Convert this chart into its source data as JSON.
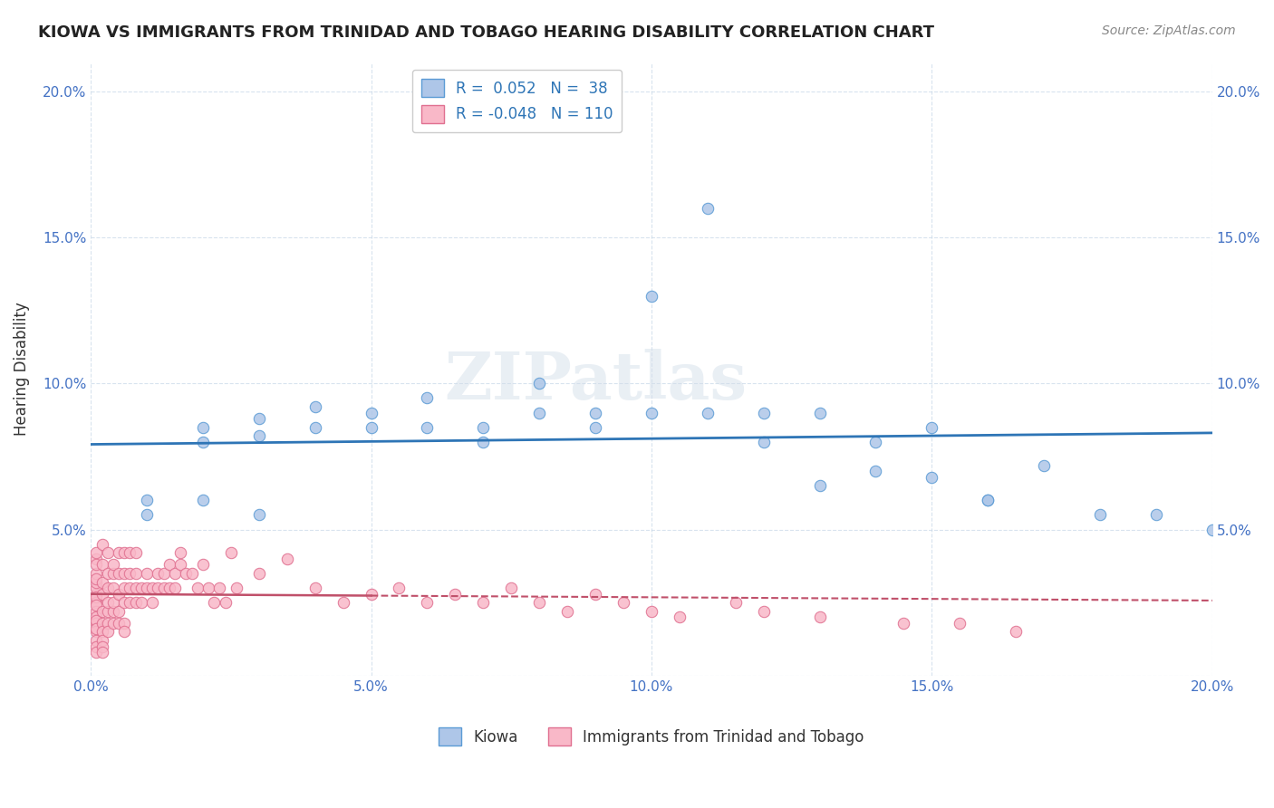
{
  "title": "KIOWA VS IMMIGRANTS FROM TRINIDAD AND TOBAGO HEARING DISABILITY CORRELATION CHART",
  "source": "Source: ZipAtlas.com",
  "xlabel_bottom": "",
  "ylabel": "Hearing Disability",
  "xlim": [
    0.0,
    0.2
  ],
  "ylim": [
    0.0,
    0.21
  ],
  "yticks": [
    0.0,
    0.05,
    0.1,
    0.15,
    0.2
  ],
  "ytick_labels": [
    "",
    "5.0%",
    "10.0%",
    "15.0%",
    "20.0%"
  ],
  "xticks": [
    0.0,
    0.05,
    0.1,
    0.15,
    0.2
  ],
  "xtick_labels": [
    "0.0%",
    "5.0%",
    "10.0%",
    "15.0%",
    "20.0%"
  ],
  "legend_entries": [
    {
      "label": "R =  0.052  N =  38",
      "color": "#aec6e8",
      "border": "#5b9bd5"
    },
    {
      "label": "R = -0.048  N = 110",
      "color": "#f4b8c8",
      "border": "#d9748a"
    }
  ],
  "legend_labels_bottom": [
    "Kiowa",
    "Immigrants from Trinidad and Tobago"
  ],
  "blue_R": 0.052,
  "blue_N": 38,
  "pink_R": -0.048,
  "pink_N": 110,
  "watermark": "ZIPatlas",
  "blue_scatter_x": [
    0.01,
    0.01,
    0.02,
    0.02,
    0.02,
    0.03,
    0.03,
    0.03,
    0.04,
    0.04,
    0.05,
    0.05,
    0.06,
    0.06,
    0.07,
    0.07,
    0.08,
    0.08,
    0.09,
    0.09,
    0.1,
    0.1,
    0.11,
    0.11,
    0.12,
    0.12,
    0.13,
    0.13,
    0.14,
    0.14,
    0.15,
    0.15,
    0.16,
    0.16,
    0.17,
    0.18,
    0.19,
    0.2
  ],
  "blue_scatter_y": [
    0.055,
    0.06,
    0.085,
    0.08,
    0.06,
    0.088,
    0.082,
    0.055,
    0.092,
    0.085,
    0.09,
    0.085,
    0.095,
    0.085,
    0.085,
    0.08,
    0.1,
    0.09,
    0.085,
    0.09,
    0.09,
    0.13,
    0.16,
    0.09,
    0.09,
    0.08,
    0.09,
    0.065,
    0.08,
    0.07,
    0.085,
    0.068,
    0.06,
    0.06,
    0.072,
    0.055,
    0.055,
    0.05
  ],
  "pink_scatter_x": [
    0.001,
    0.001,
    0.001,
    0.001,
    0.001,
    0.001,
    0.001,
    0.001,
    0.001,
    0.001,
    0.001,
    0.001,
    0.001,
    0.001,
    0.001,
    0.001,
    0.001,
    0.001,
    0.001,
    0.001,
    0.002,
    0.002,
    0.002,
    0.002,
    0.002,
    0.002,
    0.002,
    0.002,
    0.002,
    0.002,
    0.003,
    0.003,
    0.003,
    0.003,
    0.003,
    0.003,
    0.003,
    0.004,
    0.004,
    0.004,
    0.004,
    0.004,
    0.004,
    0.005,
    0.005,
    0.005,
    0.005,
    0.005,
    0.006,
    0.006,
    0.006,
    0.006,
    0.006,
    0.006,
    0.007,
    0.007,
    0.007,
    0.007,
    0.008,
    0.008,
    0.008,
    0.008,
    0.009,
    0.009,
    0.01,
    0.01,
    0.011,
    0.011,
    0.012,
    0.012,
    0.013,
    0.013,
    0.014,
    0.014,
    0.015,
    0.015,
    0.016,
    0.016,
    0.017,
    0.018,
    0.019,
    0.02,
    0.021,
    0.022,
    0.023,
    0.024,
    0.025,
    0.026,
    0.03,
    0.035,
    0.04,
    0.045,
    0.05,
    0.055,
    0.06,
    0.065,
    0.07,
    0.075,
    0.08,
    0.085,
    0.09,
    0.095,
    0.1,
    0.105,
    0.115,
    0.12,
    0.13,
    0.145,
    0.155,
    0.165
  ],
  "pink_scatter_y": [
    0.028,
    0.03,
    0.032,
    0.025,
    0.022,
    0.02,
    0.018,
    0.015,
    0.012,
    0.01,
    0.008,
    0.035,
    0.04,
    0.038,
    0.042,
    0.033,
    0.027,
    0.024,
    0.019,
    0.016,
    0.028,
    0.032,
    0.038,
    0.045,
    0.022,
    0.018,
    0.015,
    0.012,
    0.01,
    0.008,
    0.03,
    0.035,
    0.042,
    0.022,
    0.018,
    0.025,
    0.015,
    0.03,
    0.035,
    0.022,
    0.018,
    0.025,
    0.038,
    0.028,
    0.035,
    0.042,
    0.022,
    0.018,
    0.03,
    0.025,
    0.035,
    0.042,
    0.018,
    0.015,
    0.03,
    0.035,
    0.042,
    0.025,
    0.03,
    0.035,
    0.042,
    0.025,
    0.03,
    0.025,
    0.03,
    0.035,
    0.03,
    0.025,
    0.03,
    0.035,
    0.035,
    0.03,
    0.03,
    0.038,
    0.035,
    0.03,
    0.038,
    0.042,
    0.035,
    0.035,
    0.03,
    0.038,
    0.03,
    0.025,
    0.03,
    0.025,
    0.042,
    0.03,
    0.035,
    0.04,
    0.03,
    0.025,
    0.028,
    0.03,
    0.025,
    0.028,
    0.025,
    0.03,
    0.025,
    0.022,
    0.028,
    0.025,
    0.022,
    0.02,
    0.025,
    0.022,
    0.02,
    0.018,
    0.018,
    0.015
  ]
}
